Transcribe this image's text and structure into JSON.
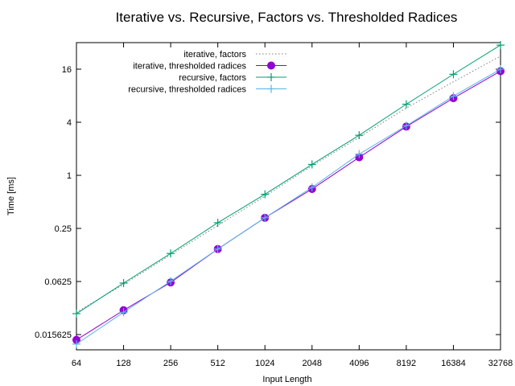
{
  "chart_data": {
    "type": "line",
    "title": "Iterative vs. Recursive, Factors vs. Thresholded Radices",
    "xlabel": "Input Length",
    "ylabel": "Time [ms]",
    "x_scale": "log2",
    "y_scale": "log2",
    "xlim": [
      64,
      32768
    ],
    "ylim": [
      0.0105,
      32
    ],
    "x_ticks": [
      "64",
      "128",
      "256",
      "512",
      "1024",
      "2048",
      "4096",
      "8192",
      "16384",
      "32768"
    ],
    "y_ticks": [
      "0.015625",
      "0.0625",
      "0.25",
      "1",
      "4",
      "16"
    ],
    "legend_position": "top-left",
    "x": [
      64,
      128,
      256,
      512,
      1024,
      2048,
      4096,
      8192,
      16384,
      32768
    ],
    "series": [
      {
        "name": "iterative, factors",
        "color": "#7f7f7f",
        "style": "dotted",
        "marker": "none",
        "values": [
          0.028,
          0.058,
          0.125,
          0.27,
          0.58,
          1.28,
          2.7,
          5.8,
          11.5,
          22.5
        ]
      },
      {
        "name": "iterative, thresholded radices",
        "color": "#9400d3",
        "style": "solid",
        "marker": "circle",
        "values": [
          0.0136,
          0.0295,
          0.061,
          0.146,
          0.33,
          0.7,
          1.6,
          3.57,
          7.5,
          15.2
        ]
      },
      {
        "name": "recursive, factors",
        "color": "#009e73",
        "style": "solid",
        "marker": "plus",
        "values": [
          0.027,
          0.06,
          0.13,
          0.29,
          0.61,
          1.33,
          2.85,
          6.4,
          14.0,
          30.0
        ]
      },
      {
        "name": "recursive, thresholded radices",
        "color": "#56b4e9",
        "style": "solid",
        "marker": "plus",
        "values": [
          0.0122,
          0.028,
          0.063,
          0.146,
          0.33,
          0.73,
          1.74,
          3.65,
          7.9,
          16.0
        ]
      }
    ]
  }
}
